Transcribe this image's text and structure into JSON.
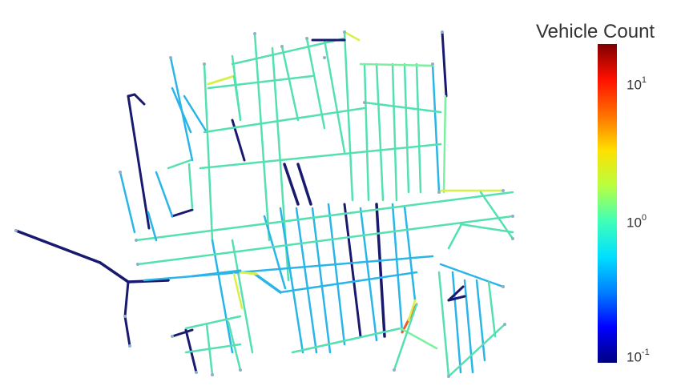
{
  "colorbar": {
    "title": "Vehicle Count",
    "scale": "log",
    "range": [
      0.1,
      20
    ],
    "colormap": "jet",
    "colors": [
      "#00007f",
      "#0000ff",
      "#0080ff",
      "#00e0ff",
      "#40ffb8",
      "#b8ff40",
      "#ffe000",
      "#ff7000",
      "#ff1000",
      "#800000"
    ],
    "ticks": [
      {
        "base": "10",
        "exp": "1"
      },
      {
        "base": "10",
        "exp": "0"
      },
      {
        "base": "10",
        "exp": "-1"
      }
    ]
  },
  "network_palette": {
    "very_low": "#191970",
    "low": "#1f8fe0",
    "mid_low": "#2ab5e8",
    "mid": "#55e0b0",
    "mid_high": "#7af0a0",
    "high": "#d8f048",
    "peak": "#f05a28"
  }
}
